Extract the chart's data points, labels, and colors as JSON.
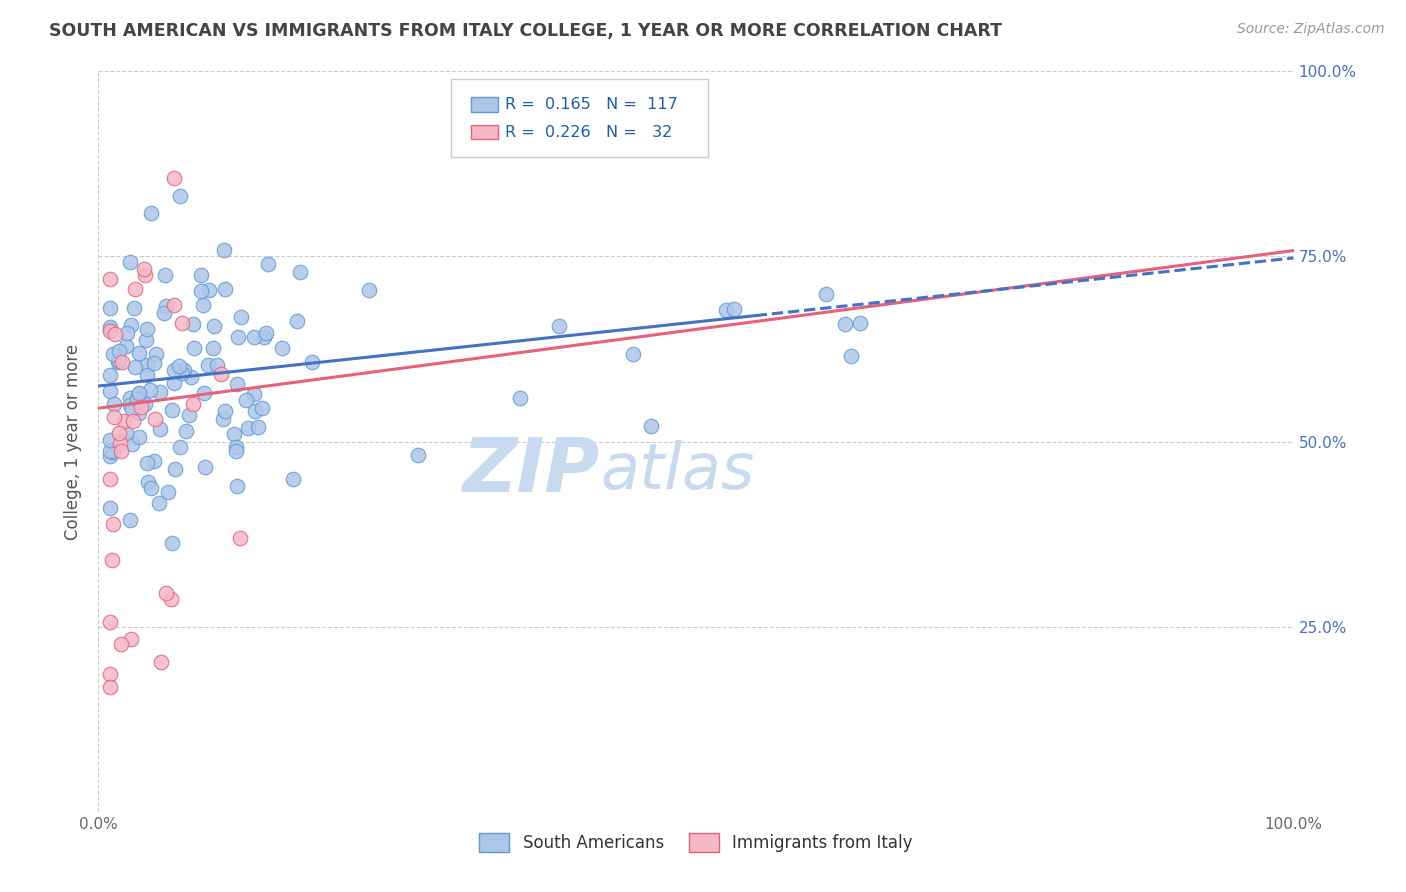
{
  "title": "SOUTH AMERICAN VS IMMIGRANTS FROM ITALY COLLEGE, 1 YEAR OR MORE CORRELATION CHART",
  "source_text": "Source: ZipAtlas.com",
  "ylabel": "College, 1 year or more",
  "xlim": [
    0.0,
    1.0
  ],
  "ylim": [
    0.0,
    1.0
  ],
  "sa_line_color": "#4472c4",
  "italy_line_color": "#e8607a",
  "sa_dot_color": "#aec6e8",
  "sa_dot_edge": "#5b9bd5",
  "italy_dot_color": "#f4b8c8",
  "italy_dot_edge": "#e8607a",
  "watermark_text": "ZIP",
  "watermark_text2": "atlas",
  "watermark_color": "#c8daf0",
  "grid_color": "#cccccc",
  "background_color": "#ffffff",
  "title_color": "#444444",
  "right_label_color": "#4472c4",
  "legend_sa_label": "R =  0.165   N =  117",
  "legend_it_label": "R =  0.226   N =   32",
  "bottom_label_sa": "South Americans",
  "bottom_label_it": "Immigrants from Italy",
  "sa_line_start_y": 0.575,
  "sa_line_end_y": 0.748,
  "it_line_start_y": 0.545,
  "it_line_end_y": 0.758,
  "sa_n": 117,
  "it_n": 32
}
